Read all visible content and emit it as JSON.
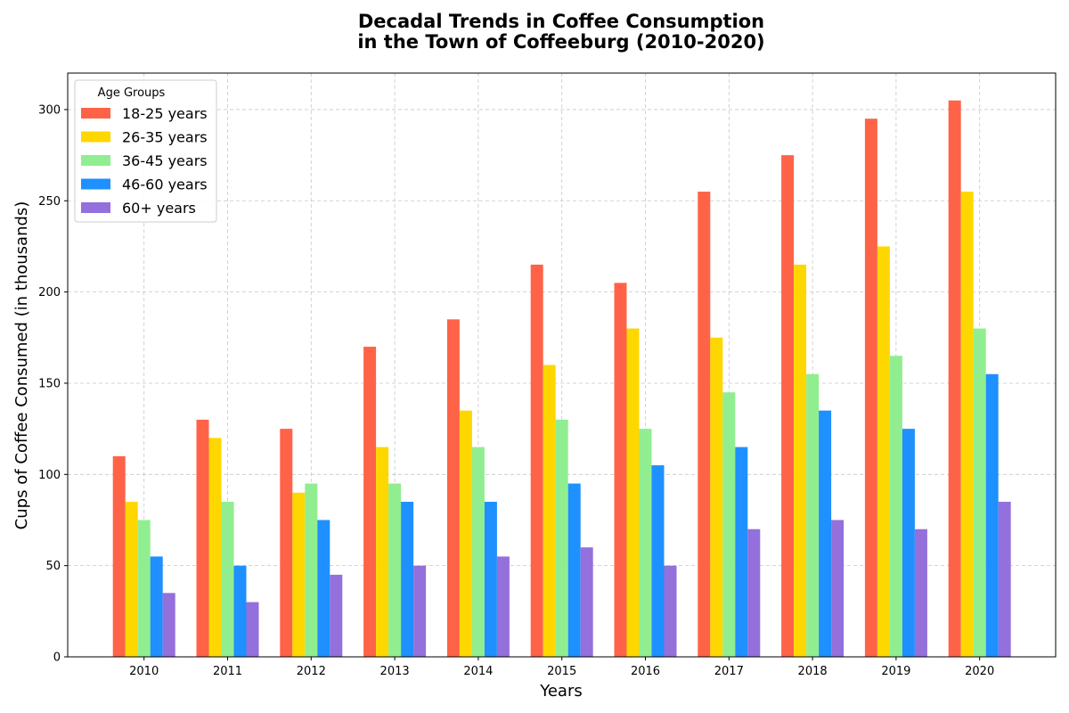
{
  "chart_data": {
    "type": "bar",
    "title_lines": [
      "Decadal Trends in Coffee Consumption",
      "in the Town of Coffeeburg (2010-2020)"
    ],
    "xlabel": "Years",
    "ylabel": "Cups of Coffee Consumed (in thousands)",
    "ylim": [
      0,
      320
    ],
    "yticks": [
      0,
      50,
      100,
      150,
      200,
      250,
      300
    ],
    "grid": true,
    "legend": {
      "title": "Age Groups",
      "placement": "top-left"
    },
    "categories": [
      "2010",
      "2011",
      "2012",
      "2013",
      "2014",
      "2015",
      "2016",
      "2017",
      "2018",
      "2019",
      "2020"
    ],
    "series": [
      {
        "name": "18-25 years",
        "color": "#ff6347",
        "values": [
          110,
          130,
          125,
          170,
          185,
          215,
          205,
          255,
          275,
          295,
          305
        ]
      },
      {
        "name": "26-35 years",
        "color": "#ffd700",
        "values": [
          85,
          120,
          90,
          115,
          135,
          160,
          180,
          175,
          215,
          225,
          255
        ]
      },
      {
        "name": "36-45 years",
        "color": "#90ee90",
        "values": [
          75,
          85,
          95,
          95,
          115,
          130,
          125,
          145,
          155,
          165,
          180
        ]
      },
      {
        "name": "46-60 years",
        "color": "#1e90ff",
        "values": [
          55,
          50,
          75,
          85,
          85,
          95,
          105,
          115,
          135,
          125,
          155
        ]
      },
      {
        "name": "60+ years",
        "color": "#9370db",
        "values": [
          35,
          30,
          45,
          50,
          55,
          60,
          50,
          70,
          75,
          70,
          85
        ]
      }
    ]
  }
}
